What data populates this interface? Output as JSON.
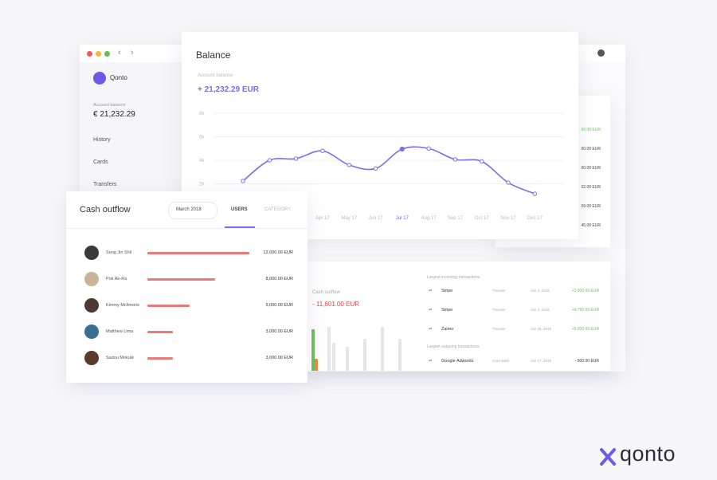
{
  "window": {
    "brand": "Qonto",
    "account_label": "Account balance",
    "account_balance": "€ 21,232.29",
    "nav": [
      "History",
      "Cards",
      "Transfers"
    ]
  },
  "balance": {
    "title": "Balance",
    "subtitle": "Account balance",
    "amount": "+ 21,232.29 EUR",
    "chart_data": {
      "type": "line",
      "categories": [
        null,
        null,
        null,
        "Apr 17",
        "May 17",
        "Jun 17",
        "Jul 17",
        "Aug 17",
        "Sep 17",
        "Oct 17",
        "Nov 17",
        "Dec 17"
      ],
      "values": [
        2240,
        4000,
        4140,
        4800,
        3600,
        3300,
        4950,
        5000,
        4070,
        3900,
        2100,
        1150
      ],
      "color": "#7b6cf0",
      "highlight": 6,
      "ylim": [
        0,
        8000
      ],
      "yticks": [
        {
          "value": 2000,
          "label": "2k"
        },
        {
          "value": 4000,
          "label": "4k"
        },
        {
          "value": 6000,
          "label": "6k"
        },
        {
          "value": 8000,
          "label": "8k"
        }
      ],
      "grid": true
    }
  },
  "right_panel": {
    "amounts": [
      "60.00 EUR",
      "00.00 EUR",
      "00.00 EUR",
      "02.00 EUR",
      "09.00 EUR",
      "45.00 EUR"
    ]
  },
  "cash_outflow": {
    "title": "Cash outflow",
    "period": "March 2018",
    "tabs": [
      "USERS",
      "CATEGORY"
    ],
    "color": "#ea7a7a",
    "rows": [
      {
        "name": "Sung Jin Shil",
        "amount": 12000,
        "amount_label": "12,000.00 EUR"
      },
      {
        "name": "Pok Ae-Ra",
        "amount": 8000,
        "amount_label": "8,000.00 EUR"
      },
      {
        "name": "Kimmy McIlmorie",
        "amount": 5000,
        "amount_label": "5,000.00 EUR"
      },
      {
        "name": "Matthew Lima",
        "amount": 3000,
        "amount_label": "3,000.00 EUR"
      },
      {
        "name": "Sadou Mokulé",
        "amount": 3000,
        "amount_label": "3,000.00 EUR"
      }
    ]
  },
  "summary": {
    "label": "Cash outflow",
    "amount": "- 11,601.00 EUR",
    "bars": {
      "values": [
        52,
        15,
        55,
        35,
        30,
        40,
        55,
        40
      ],
      "colors": [
        "#6cc25a",
        "#f0884a",
        "#e4e4ea",
        "#e4e4ea",
        "#e4e4ea",
        "#e4e4ea",
        "#e4e4ea",
        "#e4e4ea"
      ]
    },
    "incoming_title": "Largest incoming transactions",
    "incoming": [
      {
        "name": "Stripe",
        "method": "Transfer",
        "date": "Jan 4, 2018",
        "amount": "+2,000.00 EUR"
      },
      {
        "name": "Stripe",
        "method": "Transfer",
        "date": "Jan 3, 2018",
        "amount": "+4,750.00 EUR"
      },
      {
        "name": "Zalmo",
        "method": "Transfer",
        "date": "Jan 26, 2018",
        "amount": "+5,000.00 EUR"
      }
    ],
    "outgoing_title": "Largest outgoing transactions",
    "outgoing": [
      {
        "name": "Google Adwords",
        "method": "Card debit",
        "date": "Jan 17, 2018",
        "amount": "- 500.00 EUR"
      }
    ]
  },
  "logo": "qonto"
}
